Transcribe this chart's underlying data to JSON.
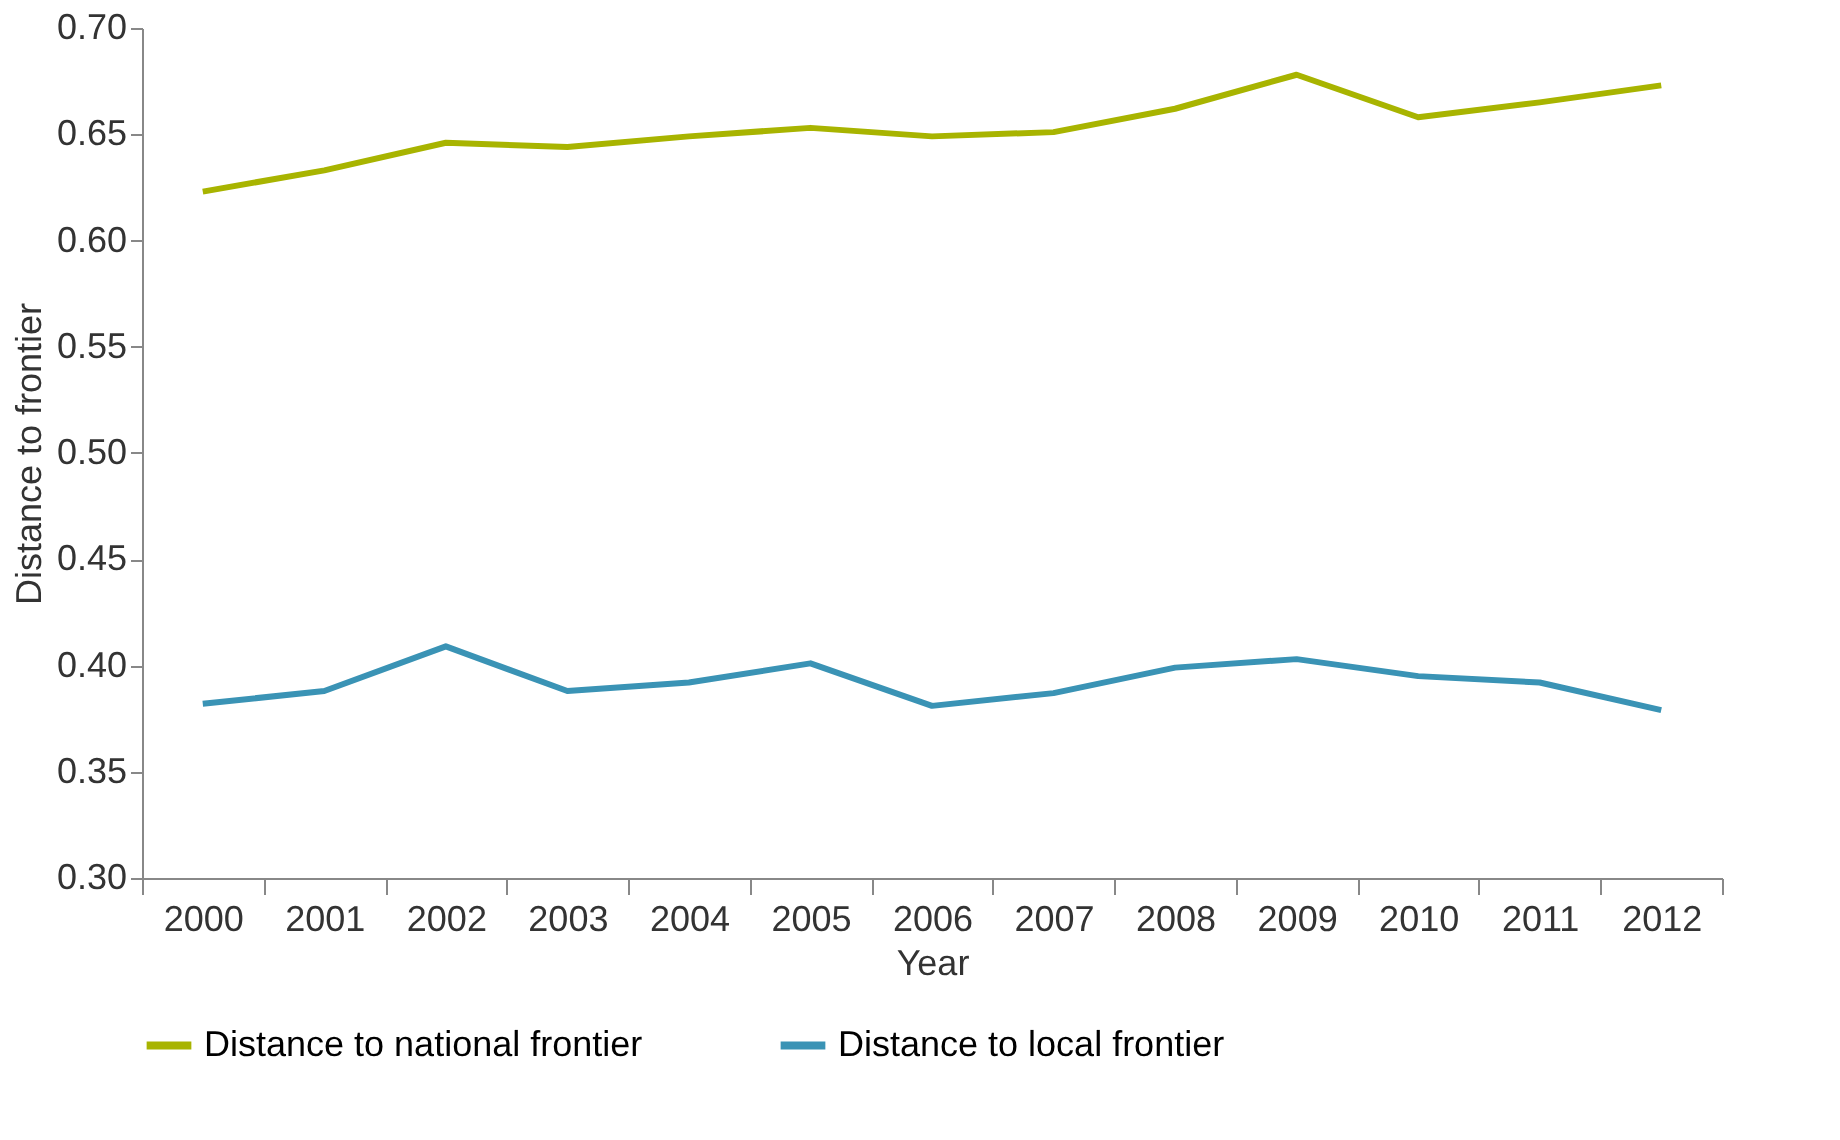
{
  "chart_data": {
    "type": "line",
    "xlabel": "Year",
    "ylabel": "Distance to frontier",
    "categories": [
      "2000",
      "2001",
      "2002",
      "2003",
      "2004",
      "2005",
      "2006",
      "2007",
      "2008",
      "2009",
      "2010",
      "2011",
      "2012"
    ],
    "series": [
      {
        "name": "Distance to national frontier",
        "color": "#a8b400",
        "values": [
          0.623,
          0.633,
          0.646,
          0.644,
          0.649,
          0.653,
          0.649,
          0.651,
          0.662,
          0.678,
          0.658,
          0.665,
          0.673
        ]
      },
      {
        "name": "Distance to local frontier",
        "color": "#3a93b5",
        "values": [
          0.382,
          0.388,
          0.409,
          0.388,
          0.392,
          0.401,
          0.381,
          0.387,
          0.399,
          0.403,
          0.395,
          0.392,
          0.379
        ]
      }
    ],
    "ylim": [
      0.3,
      0.7
    ],
    "yticks": [
      {
        "value": 0.3,
        "label": "0.30"
      },
      0.35,
      {
        "value": 0.4,
        "label": "0.40"
      },
      0.45,
      {
        "value": 0.5,
        "label": "0.50"
      },
      0.55,
      {
        "value": 0.6,
        "label": "0.60"
      },
      0.65,
      {
        "value": 0.7,
        "label": "0.70"
      }
    ],
    "grid": false,
    "legend": "bottom",
    "marker": "none",
    "line_style": "solid"
  }
}
